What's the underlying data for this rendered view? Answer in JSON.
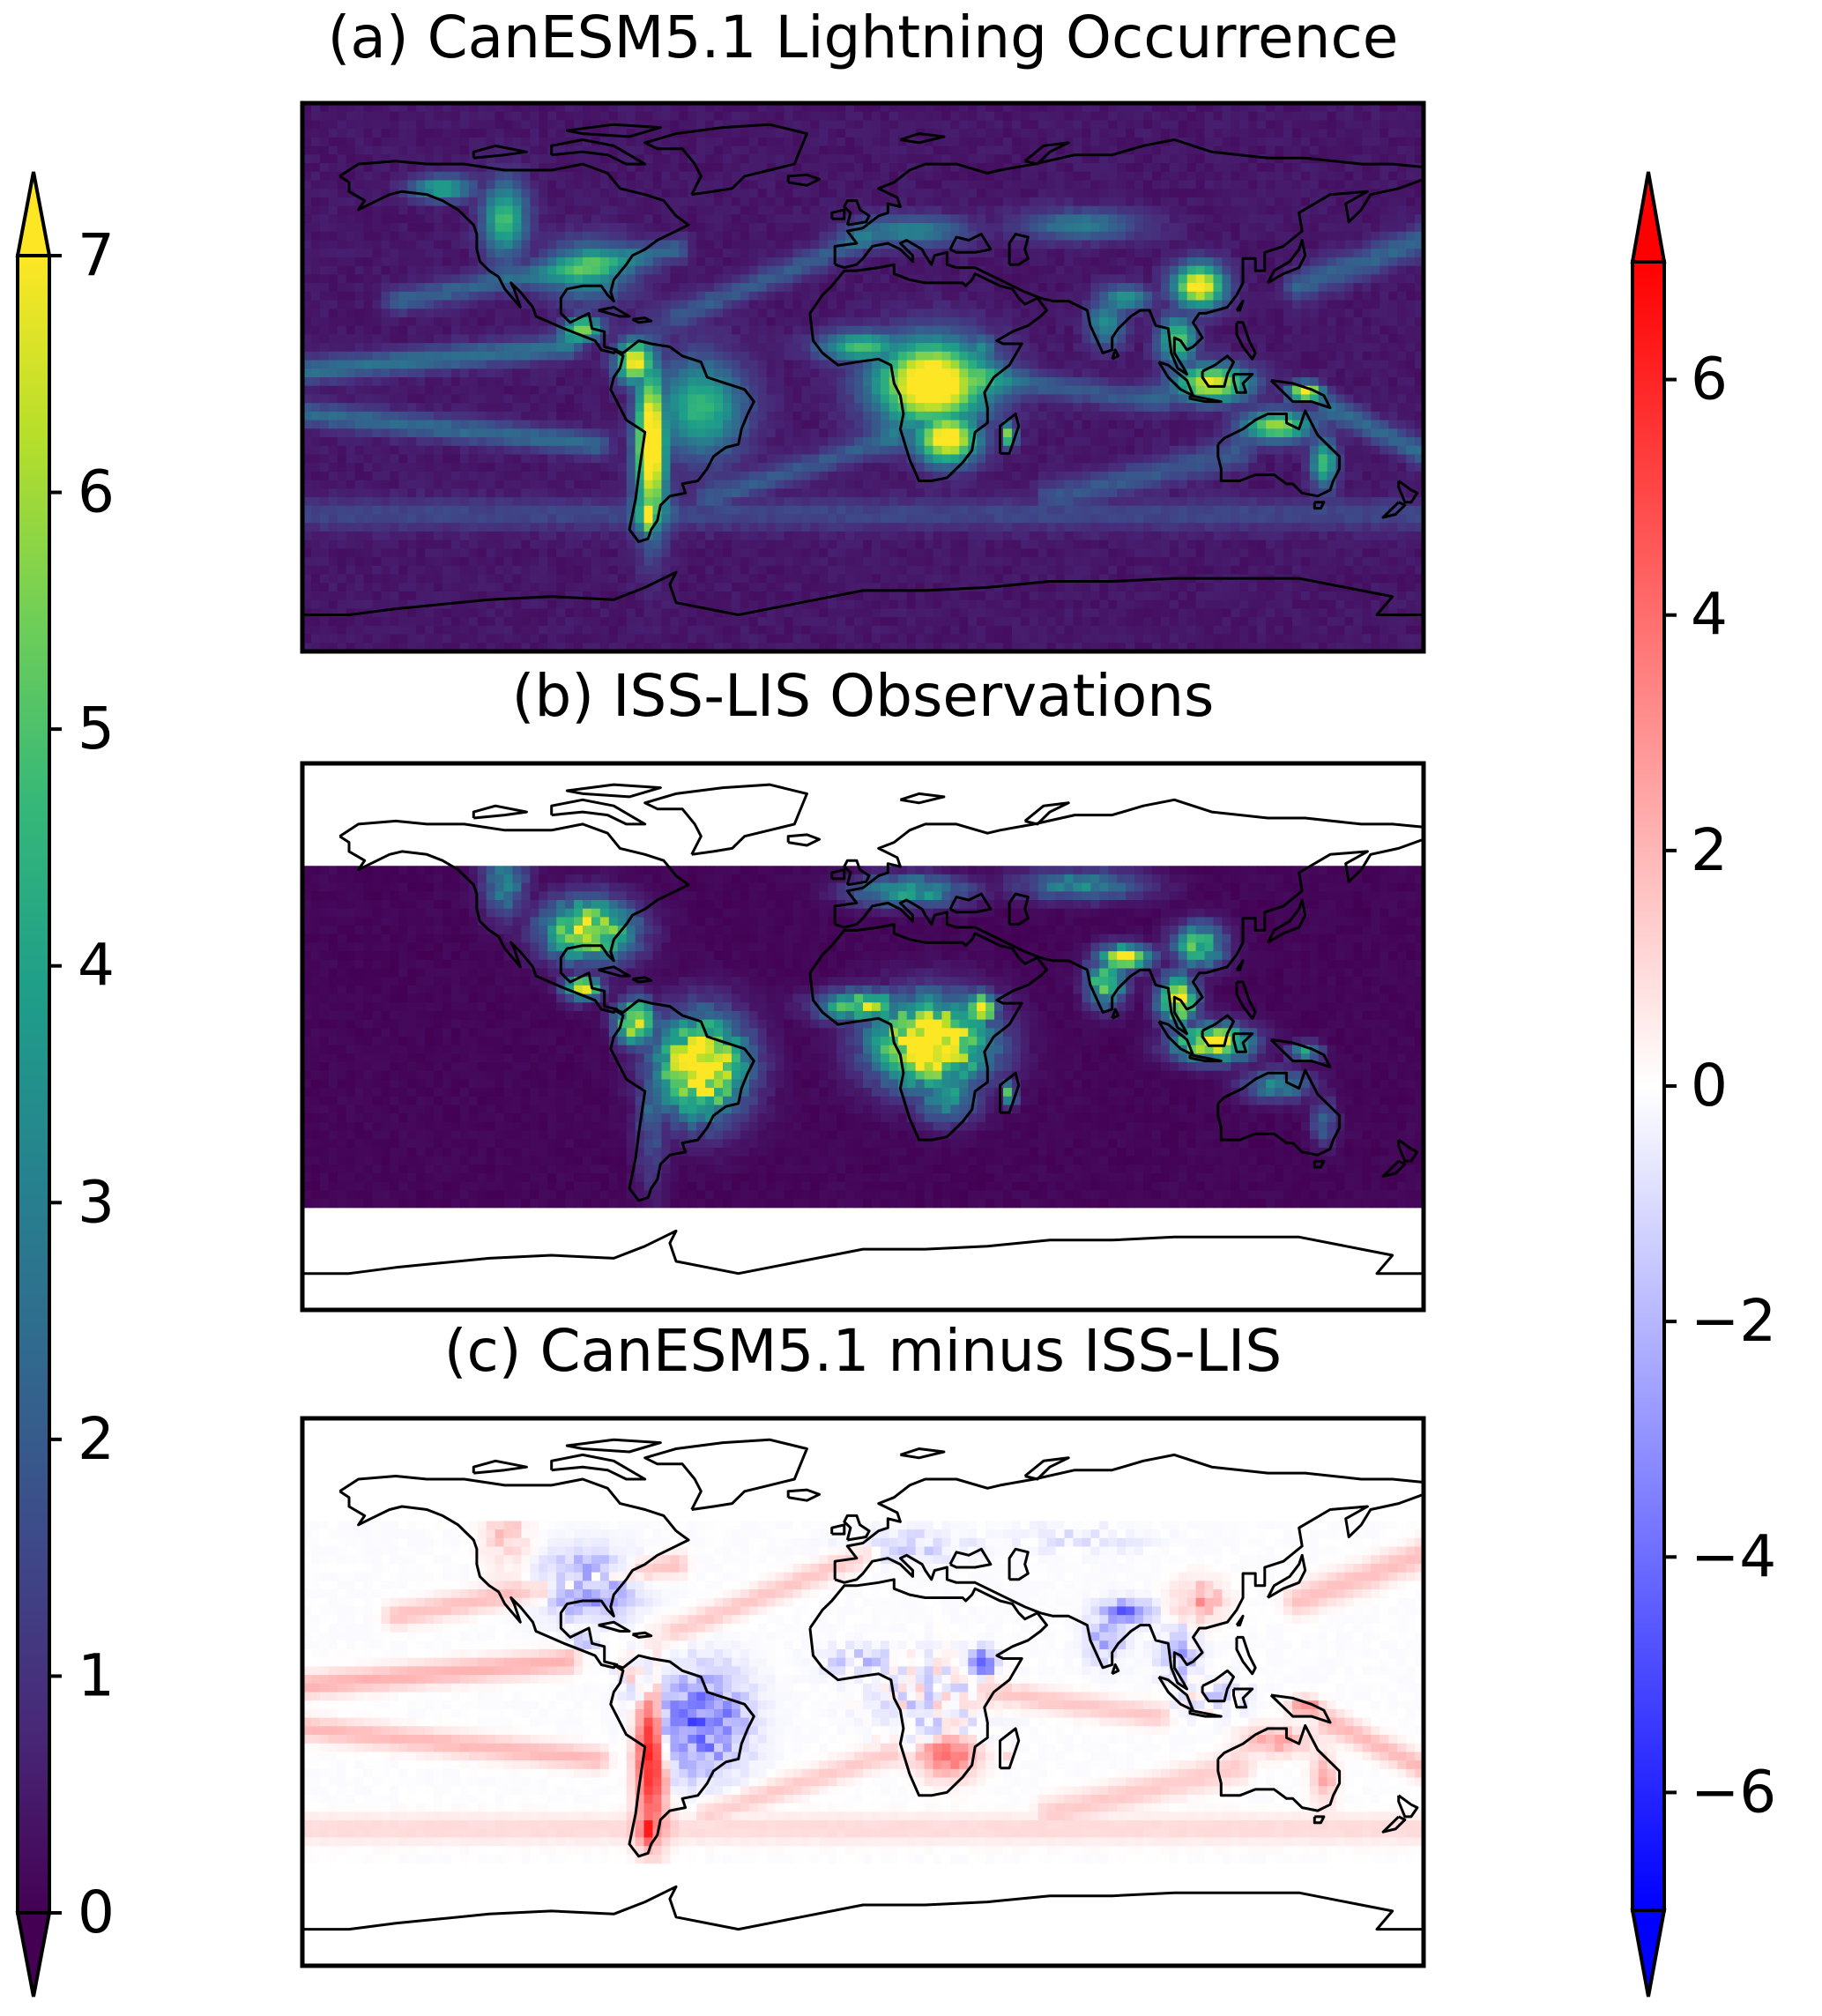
{
  "chart_data": [
    {
      "type": "heatmap",
      "panel": "a",
      "title": "(a) CanESM5.1 Lightning Occurrence",
      "colormap": "viridis",
      "colorbar": "left",
      "grid": false,
      "valid_lat_range": [
        -90,
        90
      ]
    },
    {
      "type": "heatmap",
      "panel": "b",
      "title": "(b) ISS-LIS Observations",
      "colormap": "viridis",
      "colorbar": "left",
      "grid": false,
      "valid_lat_range": [
        -55,
        55
      ],
      "missing_meridian_lon": 0
    },
    {
      "type": "heatmap",
      "panel": "c",
      "title": "(c) CanESM5.1 minus ISS-LIS",
      "colormap": "bwr",
      "colorbar": "right",
      "grid": false,
      "valid_lat_range": [
        -55,
        55
      ],
      "missing_meridian_lon": 0
    }
  ],
  "colorbar_left": {
    "colormap": "viridis",
    "range": [
      0,
      7
    ],
    "extend": "both",
    "ticks": [
      0,
      1,
      2,
      3,
      4,
      5,
      6,
      7
    ],
    "tick_labels": [
      "0",
      "1",
      "2",
      "3",
      "4",
      "5",
      "6",
      "7"
    ]
  },
  "colorbar_right": {
    "colormap": "bwr",
    "range": [
      -7,
      7
    ],
    "extend": "both",
    "ticks": [
      -6,
      -4,
      -2,
      0,
      2,
      4,
      6
    ],
    "tick_labels": [
      "−6",
      "−4",
      "−2",
      "0",
      "2",
      "4",
      "6"
    ]
  },
  "colors": {
    "viridis": [
      "#440154",
      "#482878",
      "#3e4989",
      "#31688e",
      "#26828e",
      "#1f9e89",
      "#35b779",
      "#6ece58",
      "#b5de2b",
      "#fde725"
    ],
    "bwr_low": "#0000ff",
    "bwr_mid": "#ffffff",
    "bwr_high": "#ff0000"
  },
  "regions": [
    {
      "name": "central-africa",
      "lon": 22,
      "lat": -2,
      "rx": 18,
      "ry": 14,
      "model": 8.0,
      "obs": 8.2
    },
    {
      "name": "south-africa",
      "lon": 27,
      "lat": -20,
      "rx": 10,
      "ry": 8,
      "model": 7.5,
      "obs": 3.5
    },
    {
      "name": "west-africa",
      "lon": 0,
      "lat": 10,
      "rx": 14,
      "ry": 5,
      "model": 4.5,
      "obs": 5.5
    },
    {
      "name": "ethiopia",
      "lon": 38,
      "lat": 9,
      "rx": 5,
      "ry": 5,
      "model": 3.0,
      "obs": 7.5
    },
    {
      "name": "andes-south-america",
      "lon": -68,
      "lat": -22,
      "rx": 5,
      "ry": 26,
      "model": 8.0,
      "obs": 2.0
    },
    {
      "name": "amazon-brazil",
      "lon": -52,
      "lat": -10,
      "rx": 14,
      "ry": 16,
      "model": 4.2,
      "obs": 8.0
    },
    {
      "name": "colombia",
      "lon": -73,
      "lat": 5,
      "rx": 6,
      "ry": 7,
      "model": 7.0,
      "obs": 7.0
    },
    {
      "name": "patagonia",
      "lon": -69,
      "lat": -45,
      "rx": 3,
      "ry": 7,
      "model": 6.5,
      "obs": 1.0
    },
    {
      "name": "usa-east",
      "lon": -88,
      "lat": 35,
      "rx": 14,
      "ry": 10,
      "model": 3.2,
      "obs": 6.5
    },
    {
      "name": "western-north-america",
      "lon": -115,
      "lat": 52,
      "rx": 7,
      "ry": 12,
      "model": 4.5,
      "obs": 3.0
    },
    {
      "name": "alaska-arc",
      "lon": -135,
      "lat": 62,
      "rx": 10,
      "ry": 4,
      "model": 3.8,
      "obs": 0
    },
    {
      "name": "central-america",
      "lon": -90,
      "lat": 16,
      "rx": 6,
      "ry": 4,
      "model": 5.5,
      "obs": 6.0
    },
    {
      "name": "europe",
      "lon": 15,
      "lat": 48,
      "rx": 18,
      "ry": 5,
      "model": 2.8,
      "obs": 4.0
    },
    {
      "name": "china-central",
      "lon": 108,
      "lat": 30,
      "rx": 8,
      "ry": 7,
      "model": 7.2,
      "obs": 4.8
    },
    {
      "name": "himalaya-india",
      "lon": 84,
      "lat": 26,
      "rx": 8,
      "ry": 4,
      "model": 3.5,
      "obs": 7.2
    },
    {
      "name": "india",
      "lon": 78,
      "lat": 18,
      "rx": 6,
      "ry": 8,
      "model": 3.0,
      "obs": 5.0
    },
    {
      "name": "southeast-asia",
      "lon": 101,
      "lat": 12,
      "rx": 6,
      "ry": 8,
      "model": 4.8,
      "obs": 6.8
    },
    {
      "name": "maritime-continent",
      "lon": 112,
      "lat": -2,
      "rx": 12,
      "ry": 6,
      "model": 6.5,
      "obs": 6.8
    },
    {
      "name": "new-guinea",
      "lon": 142,
      "lat": -5,
      "rx": 5,
      "ry": 3,
      "model": 7.5,
      "obs": 4.0
    },
    {
      "name": "north-australia",
      "lon": 133,
      "lat": -16,
      "rx": 11,
      "ry": 5,
      "model": 5.5,
      "obs": 3.0
    },
    {
      "name": "east-australia",
      "lon": 148,
      "lat": -28,
      "rx": 4,
      "ry": 8,
      "model": 4.5,
      "obs": 2.0
    },
    {
      "name": "central-asia",
      "lon": 70,
      "lat": 50,
      "rx": 20,
      "ry": 5,
      "model": 2.5,
      "obs": 3.0
    },
    {
      "name": "madagascar",
      "lon": 47,
      "lat": -19,
      "rx": 2,
      "ry": 4,
      "model": 6.0,
      "obs": 5.5
    }
  ],
  "storm_tracks": [
    {
      "lon0": -180,
      "lat0": 2,
      "lon1": -95,
      "lat1": 10,
      "w": 4,
      "v": 2.2
    },
    {
      "lon0": -180,
      "lat0": -12,
      "lon1": -85,
      "lat1": -22,
      "w": 4,
      "v": 2.0
    },
    {
      "lon0": -150,
      "lat0": 25,
      "lon1": -60,
      "lat1": 42,
      "w": 4,
      "v": 1.8
    },
    {
      "lon0": -60,
      "lat0": 20,
      "lon1": 0,
      "lat1": 45,
      "w": 4,
      "v": 1.6
    },
    {
      "lon0": 140,
      "lat0": 30,
      "lon1": 180,
      "lat1": 45,
      "w": 5,
      "v": 1.8
    },
    {
      "lon0": -50,
      "lat0": -40,
      "lon1": 10,
      "lat1": -20,
      "w": 4,
      "v": 1.5
    },
    {
      "lon0": 60,
      "lat0": -40,
      "lon1": 120,
      "lat1": -25,
      "w": 5,
      "v": 1.5
    },
    {
      "lon0": 150,
      "lat0": -10,
      "lon1": 180,
      "lat1": -25,
      "w": 4,
      "v": 2.0
    },
    {
      "lon0": -180,
      "lat0": -45,
      "lon1": 180,
      "lat1": -45,
      "w": 5,
      "v": 1.1
    },
    {
      "lon0": 40,
      "lat0": 0,
      "lon1": 95,
      "lat1": -8,
      "w": 4,
      "v": 1.6
    }
  ]
}
